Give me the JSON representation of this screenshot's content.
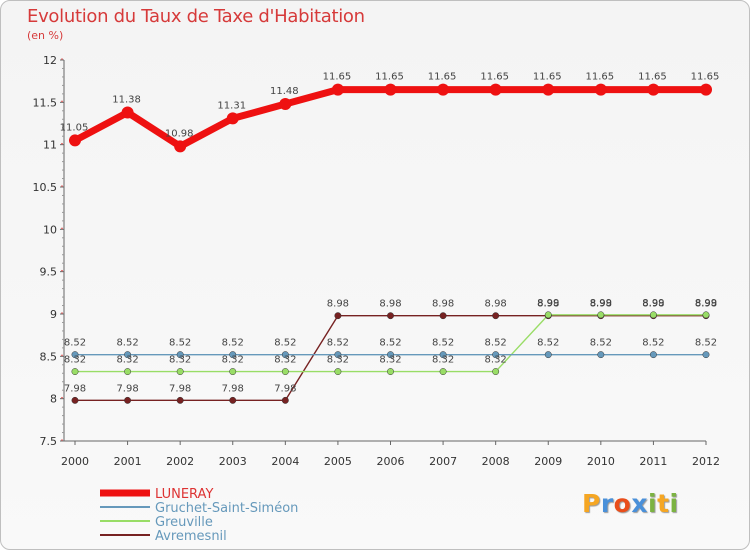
{
  "chart_data": {
    "type": "line",
    "title": "Evolution du Taux de Taxe d'Habitation",
    "subtitle": "(en %)",
    "x": [
      "2000",
      "2001",
      "2002",
      "2003",
      "2004",
      "2005",
      "2006",
      "2007",
      "2008",
      "2009",
      "2010",
      "2011",
      "2012"
    ],
    "ylim": [
      7.5,
      12
    ],
    "yticks": [
      "7.5",
      "8",
      "8.5",
      "9",
      "9.5",
      "10",
      "10.5",
      "11",
      "11.5",
      "12"
    ],
    "series": [
      {
        "name": "LUNERAY",
        "color": "#ee1111",
        "values": [
          11.05,
          11.38,
          10.98,
          11.31,
          11.48,
          11.65,
          11.65,
          11.65,
          11.65,
          11.65,
          11.65,
          11.65,
          11.65
        ],
        "labels": [
          "11.05",
          "11.38",
          "10.98",
          "11.31",
          "11.48",
          "11.65",
          "11.65",
          "11.65",
          "11.65",
          "11.65",
          "11.65",
          "11.65",
          "11.65"
        ]
      },
      {
        "name": "Gruchet-Saint-Siméon",
        "color": "#6699bb",
        "values": [
          8.52,
          8.52,
          8.52,
          8.52,
          8.52,
          8.52,
          8.52,
          8.52,
          8.52,
          8.52,
          8.52,
          8.52,
          8.52
        ],
        "labels": [
          "8.52",
          "8.52",
          "8.52",
          "8.52",
          "8.52",
          "8.52",
          "8.52",
          "8.52",
          "8.52",
          "8.52",
          "8.52",
          "8.52",
          "8.52"
        ]
      },
      {
        "name": "Greuville",
        "color": "#99dd66",
        "values": [
          8.32,
          8.32,
          8.32,
          8.32,
          8.32,
          8.32,
          8.32,
          8.32,
          8.32,
          8.99,
          8.99,
          8.99,
          8.99
        ],
        "labels": [
          "8.32",
          "8.32",
          "8.32",
          "8.32",
          "8.32",
          "8.32",
          "8.32",
          "8.32",
          "8.32",
          "8.99",
          "8.99",
          "8.99",
          "8.99"
        ]
      },
      {
        "name": "Avremesnil",
        "color": "#772222",
        "values": [
          7.98,
          7.98,
          7.98,
          7.98,
          7.98,
          8.98,
          8.98,
          8.98,
          8.98,
          8.98,
          8.98,
          8.98,
          8.98
        ],
        "labels": [
          "7.98",
          "7.98",
          "7.98",
          "7.98",
          "7.98",
          "8.98",
          "8.98",
          "8.98",
          "8.98",
          "8.98",
          "8.98",
          "8.98",
          "8.98"
        ]
      }
    ]
  },
  "brand": {
    "letters": [
      "P",
      "r",
      "o",
      "x",
      "i",
      "t",
      "i"
    ],
    "colors": [
      "#f5a623",
      "#4a90d9",
      "#e94e1b",
      "#4a90d9",
      "#7cb342",
      "#f5a623",
      "#7cb342"
    ]
  }
}
